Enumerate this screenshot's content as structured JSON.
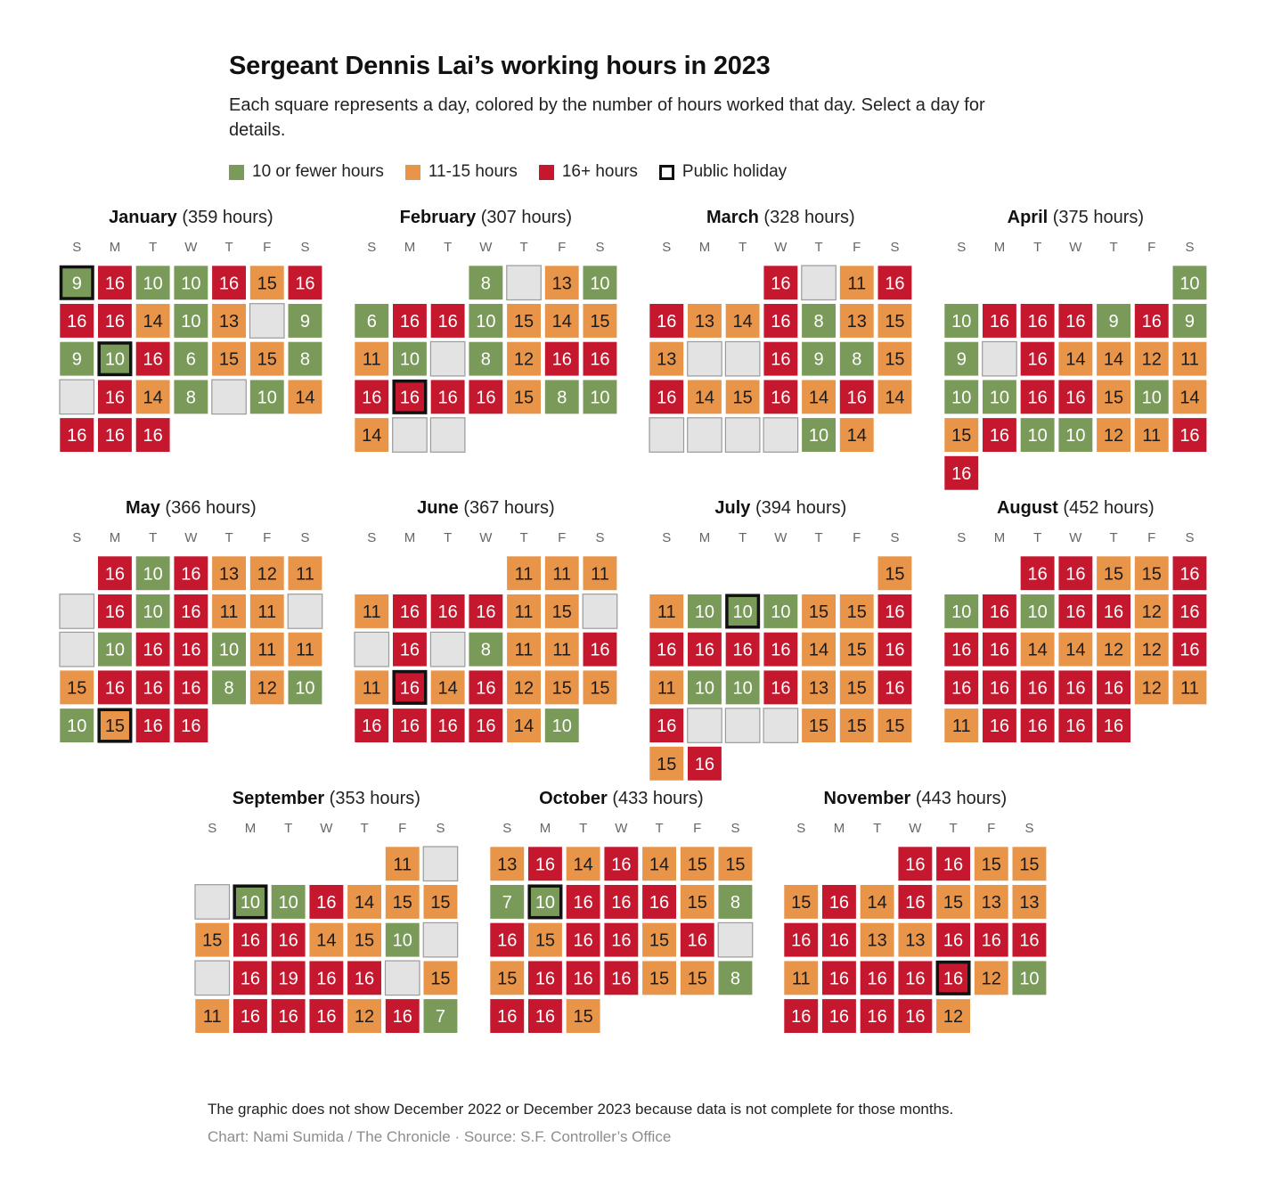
{
  "header": {
    "title": "Sergeant Dennis Lai’s working hours in 2023",
    "subtitle": "Each square represents a day, colored by the number of hours worked that day. Select a day for details."
  },
  "legend": {
    "items": [
      {
        "label": "10 or fewer hours",
        "key": "green"
      },
      {
        "label": "11-15 hours",
        "key": "orange"
      },
      {
        "label": "16+ hours",
        "key": "red"
      },
      {
        "label": "Public holiday",
        "key": "holiday"
      }
    ]
  },
  "colors": {
    "green": "#7a9a5a",
    "orange": "#e8954a",
    "red": "#c5182f",
    "empty": "#e3e3e3",
    "empty_border": "#9a9a9a",
    "holiday_border": "#111111"
  },
  "footer": {
    "note": "The graphic does not show December 2022 or December 2023 because data is not complete for those months.",
    "credit": "Chart: Nami Sumida / The Chronicle · Source: S.F. Controller’s Office"
  },
  "chart_data": {
    "type": "heatmap",
    "title": "Sergeant Dennis Lai’s working hours in 2023",
    "weekday_labels": [
      "S",
      "M",
      "T",
      "W",
      "T",
      "F",
      "S"
    ],
    "hours_suffix": "hours",
    "color_bins": [
      {
        "label": "10 or fewer hours",
        "max": 10,
        "color": "#7a9a5a"
      },
      {
        "label": "11-15 hours",
        "min": 11,
        "max": 15,
        "color": "#e8954a"
      },
      {
        "label": "16+ hours",
        "min": 16,
        "color": "#c5182f"
      }
    ],
    "months": [
      {
        "name": "January",
        "total_hours": 359,
        "start_weekday": 0,
        "days": [
          9,
          16,
          10,
          10,
          16,
          15,
          16,
          16,
          16,
          14,
          10,
          13,
          null,
          9,
          9,
          10,
          16,
          6,
          15,
          15,
          8,
          null,
          16,
          14,
          8,
          null,
          10,
          14,
          16,
          16,
          16
        ],
        "holidays": [
          1,
          16
        ]
      },
      {
        "name": "February",
        "total_hours": 307,
        "start_weekday": 3,
        "days": [
          8,
          null,
          13,
          10,
          6,
          16,
          16,
          10,
          15,
          14,
          15,
          11,
          10,
          null,
          8,
          12,
          16,
          16,
          16,
          16,
          16,
          16,
          15,
          8,
          10,
          14,
          null,
          null
        ],
        "holidays": [
          20
        ]
      },
      {
        "name": "March",
        "total_hours": 328,
        "start_weekday": 3,
        "days": [
          16,
          null,
          11,
          16,
          16,
          13,
          14,
          16,
          8,
          13,
          15,
          13,
          null,
          null,
          16,
          9,
          8,
          15,
          16,
          14,
          15,
          16,
          14,
          16,
          14,
          null,
          null,
          null,
          null,
          10,
          14
        ],
        "holidays": []
      },
      {
        "name": "April",
        "total_hours": 375,
        "start_weekday": 6,
        "days": [
          10,
          10,
          16,
          16,
          16,
          9,
          16,
          9,
          9,
          null,
          16,
          14,
          14,
          12,
          11,
          10,
          10,
          16,
          16,
          15,
          10,
          14,
          15,
          16,
          10,
          10,
          12,
          11,
          16,
          16
        ],
        "holidays": []
      },
      {
        "name": "May",
        "total_hours": 366,
        "start_weekday": 1,
        "days": [
          16,
          10,
          16,
          13,
          12,
          11,
          null,
          16,
          10,
          16,
          11,
          11,
          null,
          null,
          10,
          16,
          16,
          10,
          11,
          11,
          15,
          16,
          16,
          16,
          8,
          12,
          10,
          10,
          15,
          16,
          16
        ],
        "holidays": [
          29
        ]
      },
      {
        "name": "June",
        "total_hours": 367,
        "start_weekday": 4,
        "days": [
          11,
          11,
          11,
          11,
          16,
          16,
          16,
          11,
          15,
          null,
          null,
          16,
          null,
          8,
          11,
          11,
          16,
          11,
          16,
          14,
          16,
          12,
          15,
          15,
          16,
          16,
          16,
          16,
          14,
          10
        ],
        "holidays": [
          19
        ]
      },
      {
        "name": "July",
        "total_hours": 394,
        "start_weekday": 6,
        "days": [
          15,
          11,
          10,
          10,
          10,
          15,
          15,
          16,
          16,
          16,
          16,
          16,
          14,
          15,
          16,
          11,
          10,
          10,
          16,
          13,
          15,
          16,
          16,
          null,
          null,
          null,
          15,
          15,
          15,
          15,
          16
        ],
        "holidays": [
          4
        ]
      },
      {
        "name": "August",
        "total_hours": 452,
        "start_weekday": 2,
        "days": [
          16,
          16,
          15,
          15,
          16,
          10,
          16,
          10,
          16,
          16,
          12,
          16,
          16,
          16,
          14,
          14,
          12,
          12,
          16,
          16,
          16,
          16,
          16,
          16,
          12,
          11,
          11,
          16,
          16,
          16,
          16
        ],
        "holidays": []
      },
      {
        "name": "September",
        "total_hours": 353,
        "start_weekday": 5,
        "days": [
          11,
          null,
          null,
          10,
          10,
          16,
          14,
          15,
          15,
          15,
          16,
          16,
          14,
          15,
          10,
          null,
          null,
          16,
          19,
          16,
          16,
          null,
          15,
          11,
          16,
          16,
          16,
          12,
          16,
          7
        ],
        "holidays": [
          4
        ]
      },
      {
        "name": "October",
        "total_hours": 433,
        "start_weekday": 0,
        "days": [
          13,
          16,
          14,
          16,
          14,
          15,
          15,
          7,
          10,
          16,
          16,
          16,
          15,
          8,
          16,
          15,
          16,
          16,
          15,
          16,
          null,
          15,
          16,
          16,
          16,
          15,
          15,
          8,
          16,
          16,
          15
        ],
        "holidays": [
          9
        ]
      },
      {
        "name": "November",
        "total_hours": 443,
        "start_weekday": 3,
        "days": [
          16,
          16,
          15,
          15,
          15,
          16,
          14,
          16,
          15,
          13,
          13,
          16,
          16,
          13,
          13,
          16,
          16,
          16,
          11,
          16,
          16,
          16,
          16,
          12,
          10,
          16,
          16,
          16,
          16,
          12
        ],
        "holidays": [
          23
        ]
      }
    ]
  }
}
